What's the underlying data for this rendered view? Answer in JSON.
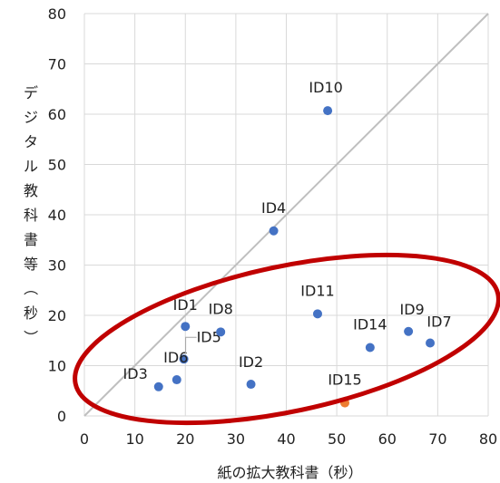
{
  "chart_data": {
    "type": "scatter",
    "title": "",
    "xlabel": "紙の拡大教科書（秒）",
    "ylabel": "デジタル教科書等（秒）",
    "xlim": [
      0,
      80
    ],
    "ylim": [
      0,
      80
    ],
    "xticks": [
      "0",
      "10",
      "20",
      "30",
      "40",
      "50",
      "60",
      "70",
      "80"
    ],
    "yticks": [
      "0",
      "10",
      "20",
      "30",
      "40",
      "50",
      "60",
      "70",
      "80"
    ],
    "grid": true,
    "reference_line": "y = x",
    "highlight": "ellipse around ID1, ID2, ID3, ID5, ID6, ID7, ID8, ID9, ID11, ID14, ID15",
    "colors": {
      "point": "#4472C4",
      "highlight_point": "#ED7D31",
      "diagonal": "#BFBFBF",
      "ellipse": "#C00000",
      "grid": "#D9D9D9"
    },
    "points": [
      {
        "label": "ID1",
        "x": 20,
        "y": 17.8
      },
      {
        "label": "ID2",
        "x": 33,
        "y": 6.3
      },
      {
        "label": "ID3",
        "x": 14.7,
        "y": 5.8
      },
      {
        "label": "ID4",
        "x": 37.5,
        "y": 36.8
      },
      {
        "label": "ID5",
        "x": 19.7,
        "y": 11.3
      },
      {
        "label": "ID6",
        "x": 18.3,
        "y": 7.2
      },
      {
        "label": "ID7",
        "x": 68.5,
        "y": 14.5
      },
      {
        "label": "ID8",
        "x": 27,
        "y": 16.7
      },
      {
        "label": "ID9",
        "x": 64.2,
        "y": 16.8
      },
      {
        "label": "ID10",
        "x": 48.2,
        "y": 60.7
      },
      {
        "label": "ID11",
        "x": 46.2,
        "y": 20.3
      },
      {
        "label": "ID14",
        "x": 56.6,
        "y": 13.6
      },
      {
        "label": "ID15",
        "x": 51.6,
        "y": 2.6,
        "highlighted": true
      }
    ]
  }
}
